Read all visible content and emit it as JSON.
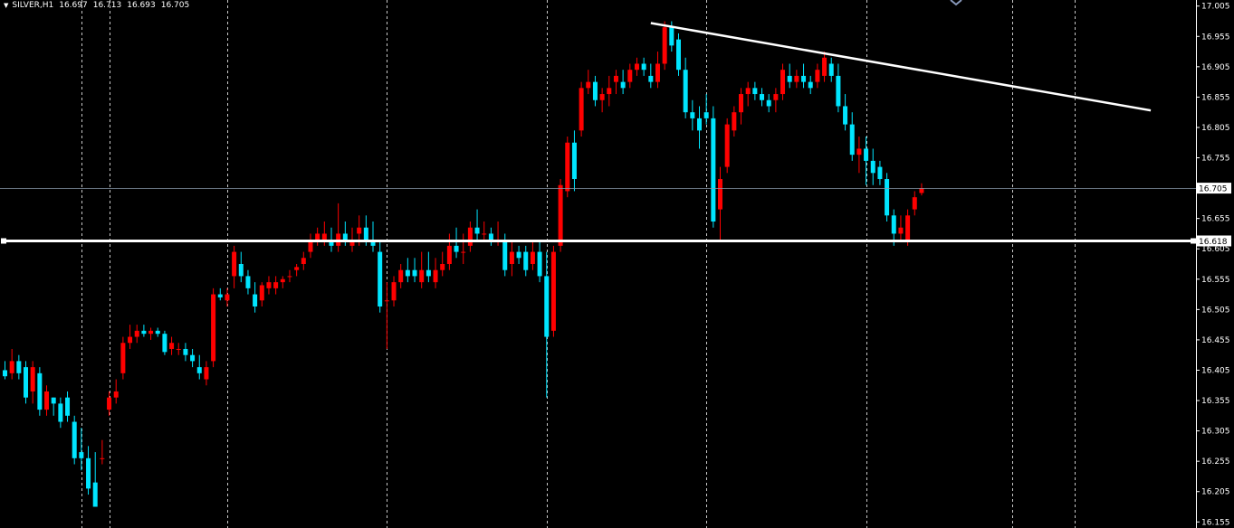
{
  "chart_data": {
    "type": "candlestick",
    "symbol": "SILVER,H1",
    "ohlc_readout": {
      "open": "16.697",
      "high": "16.713",
      "low": "16.693",
      "close": "16.705"
    },
    "y_range": [
      16.145,
      17.015
    ],
    "y_ticks": [
      "17.005",
      "16.955",
      "16.905",
      "16.855",
      "16.805",
      "16.755",
      "16.655",
      "16.605",
      "16.555",
      "16.505",
      "16.455",
      "16.405",
      "16.355",
      "16.305",
      "16.255",
      "16.205",
      "16.155"
    ],
    "current_price_label": "16.705",
    "horizontal_line_label": "16.618",
    "horizontal_line_price": 16.618,
    "trend_line": {
      "start_bar": 93,
      "start_price": 16.977,
      "end_bar": 165,
      "end_price": 16.833
    },
    "colors": {
      "bull": "#ff0000",
      "bear": "#00e5ff",
      "grid": "#c8c8c8",
      "lines": "#ffffff",
      "background": "#000000"
    },
    "session_separators_bar": [
      11,
      15,
      32,
      55,
      78,
      101,
      124,
      145,
      154
    ],
    "candles": [
      [
        16.405,
        16.42,
        16.39,
        16.395
      ],
      [
        16.4,
        16.44,
        16.39,
        16.42
      ],
      [
        16.42,
        16.43,
        16.39,
        16.4
      ],
      [
        16.41,
        16.42,
        16.35,
        16.36
      ],
      [
        16.37,
        16.42,
        16.35,
        16.41
      ],
      [
        16.4,
        16.41,
        16.33,
        16.34
      ],
      [
        16.34,
        16.38,
        16.33,
        16.37
      ],
      [
        16.36,
        16.36,
        16.33,
        16.35
      ],
      [
        16.35,
        16.36,
        16.31,
        16.32
      ],
      [
        16.36,
        16.37,
        16.32,
        16.33
      ],
      [
        16.32,
        16.33,
        16.25,
        16.26
      ],
      [
        16.27,
        16.31,
        16.24,
        16.26
      ],
      [
        16.26,
        16.28,
        16.2,
        16.21
      ],
      [
        16.22,
        16.27,
        16.18,
        16.18
      ],
      [
        16.26,
        16.29,
        16.25,
        16.26
      ],
      [
        16.34,
        16.37,
        16.33,
        16.36
      ],
      [
        16.36,
        16.39,
        16.35,
        16.37
      ],
      [
        16.4,
        16.46,
        16.39,
        16.45
      ],
      [
        16.45,
        16.48,
        16.44,
        16.46
      ],
      [
        16.46,
        16.48,
        16.45,
        16.47
      ],
      [
        16.47,
        16.48,
        16.46,
        16.465
      ],
      [
        16.465,
        16.475,
        16.455,
        16.47
      ],
      [
        16.47,
        16.475,
        16.46,
        16.465
      ],
      [
        16.465,
        16.47,
        16.43,
        16.435
      ],
      [
        16.44,
        16.46,
        16.43,
        16.45
      ],
      [
        16.44,
        16.45,
        16.43,
        16.44
      ],
      [
        16.44,
        16.45,
        16.42,
        16.43
      ],
      [
        16.43,
        16.44,
        16.41,
        16.42
      ],
      [
        16.41,
        16.43,
        16.39,
        16.4
      ],
      [
        16.39,
        16.42,
        16.38,
        16.41
      ],
      [
        16.42,
        16.54,
        16.41,
        16.53
      ],
      [
        16.53,
        16.54,
        16.52,
        16.525
      ],
      [
        16.52,
        16.54,
        16.51,
        16.53
      ],
      [
        16.56,
        16.61,
        16.54,
        16.6
      ],
      [
        16.58,
        16.6,
        16.55,
        16.56
      ],
      [
        16.56,
        16.57,
        16.53,
        16.54
      ],
      [
        16.53,
        16.55,
        16.5,
        16.51
      ],
      [
        16.52,
        16.55,
        16.51,
        16.545
      ],
      [
        16.54,
        16.56,
        16.53,
        16.55
      ],
      [
        16.54,
        16.56,
        16.53,
        16.55
      ],
      [
        16.55,
        16.56,
        16.54,
        16.555
      ],
      [
        16.56,
        16.57,
        16.55,
        16.56
      ],
      [
        16.57,
        16.58,
        16.56,
        16.575
      ],
      [
        16.58,
        16.6,
        16.57,
        16.59
      ],
      [
        16.6,
        16.63,
        16.59,
        16.62
      ],
      [
        16.62,
        16.64,
        16.61,
        16.63
      ],
      [
        16.62,
        16.65,
        16.61,
        16.63
      ],
      [
        16.62,
        16.64,
        16.6,
        16.61
      ],
      [
        16.61,
        16.68,
        16.6,
        16.63
      ],
      [
        16.63,
        16.65,
        16.61,
        16.62
      ],
      [
        16.61,
        16.64,
        16.6,
        16.62
      ],
      [
        16.63,
        16.66,
        16.61,
        16.64
      ],
      [
        16.64,
        16.66,
        16.61,
        16.62
      ],
      [
        16.62,
        16.65,
        16.6,
        16.61
      ],
      [
        16.6,
        16.62,
        16.5,
        16.51
      ],
      [
        16.52,
        16.55,
        16.44,
        16.52
      ],
      [
        16.52,
        16.56,
        16.51,
        16.55
      ],
      [
        16.55,
        16.58,
        16.54,
        16.57
      ],
      [
        16.57,
        16.59,
        16.55,
        16.56
      ],
      [
        16.57,
        16.59,
        16.55,
        16.56
      ],
      [
        16.55,
        16.6,
        16.54,
        16.57
      ],
      [
        16.57,
        16.6,
        16.55,
        16.56
      ],
      [
        16.55,
        16.59,
        16.54,
        16.57
      ],
      [
        16.57,
        16.6,
        16.56,
        16.58
      ],
      [
        16.58,
        16.63,
        16.57,
        16.61
      ],
      [
        16.61,
        16.64,
        16.59,
        16.6
      ],
      [
        16.6,
        16.63,
        16.58,
        16.6
      ],
      [
        16.61,
        16.65,
        16.6,
        16.64
      ],
      [
        16.64,
        16.67,
        16.62,
        16.63
      ],
      [
        16.63,
        16.65,
        16.62,
        16.63
      ],
      [
        16.63,
        16.64,
        16.61,
        16.62
      ],
      [
        16.62,
        16.65,
        16.61,
        16.62
      ],
      [
        16.62,
        16.63,
        16.56,
        16.57
      ],
      [
        16.58,
        16.62,
        16.56,
        16.6
      ],
      [
        16.6,
        16.61,
        16.58,
        16.59
      ],
      [
        16.6,
        16.61,
        16.56,
        16.57
      ],
      [
        16.58,
        16.62,
        16.57,
        16.6
      ],
      [
        16.6,
        16.62,
        16.55,
        16.56
      ],
      [
        16.56,
        16.6,
        16.36,
        16.46
      ],
      [
        16.47,
        16.61,
        16.46,
        16.6
      ],
      [
        16.61,
        16.72,
        16.6,
        16.71
      ],
      [
        16.7,
        16.79,
        16.69,
        16.78
      ],
      [
        16.78,
        16.8,
        16.7,
        16.72
      ],
      [
        16.8,
        16.88,
        16.79,
        16.87
      ],
      [
        16.87,
        16.9,
        16.86,
        16.88
      ],
      [
        16.88,
        16.89,
        16.84,
        16.85
      ],
      [
        16.85,
        16.87,
        16.83,
        16.86
      ],
      [
        16.86,
        16.89,
        16.84,
        16.87
      ],
      [
        16.88,
        16.9,
        16.86,
        16.89
      ],
      [
        16.88,
        16.9,
        16.86,
        16.87
      ],
      [
        16.88,
        16.91,
        16.87,
        16.9
      ],
      [
        16.9,
        16.92,
        16.89,
        16.91
      ],
      [
        16.91,
        16.92,
        16.89,
        16.9
      ],
      [
        16.89,
        16.91,
        16.87,
        16.88
      ],
      [
        16.88,
        16.93,
        16.87,
        16.91
      ],
      [
        16.91,
        16.98,
        16.9,
        16.97
      ],
      [
        16.97,
        16.98,
        16.93,
        16.94
      ],
      [
        16.95,
        16.96,
        16.89,
        16.9
      ],
      [
        16.9,
        16.92,
        16.82,
        16.83
      ],
      [
        16.83,
        16.85,
        16.8,
        16.82
      ],
      [
        16.82,
        16.84,
        16.77,
        16.8
      ],
      [
        16.83,
        16.86,
        16.81,
        16.82
      ],
      [
        16.82,
        16.84,
        16.64,
        16.65
      ],
      [
        16.67,
        16.74,
        16.62,
        16.72
      ],
      [
        16.74,
        16.82,
        16.73,
        16.81
      ],
      [
        16.8,
        16.84,
        16.79,
        16.83
      ],
      [
        16.83,
        16.87,
        16.81,
        16.86
      ],
      [
        16.86,
        16.88,
        16.84,
        16.87
      ],
      [
        16.87,
        16.88,
        16.85,
        16.86
      ],
      [
        16.86,
        16.87,
        16.84,
        16.85
      ],
      [
        16.85,
        16.86,
        16.83,
        16.84
      ],
      [
        16.85,
        16.87,
        16.83,
        16.86
      ],
      [
        16.86,
        16.91,
        16.85,
        16.9
      ],
      [
        16.89,
        16.91,
        16.87,
        16.88
      ],
      [
        16.88,
        16.9,
        16.87,
        16.89
      ],
      [
        16.89,
        16.91,
        16.87,
        16.88
      ],
      [
        16.88,
        16.89,
        16.86,
        16.87
      ],
      [
        16.88,
        16.91,
        16.87,
        16.9
      ],
      [
        16.89,
        16.93,
        16.88,
        16.92
      ],
      [
        16.91,
        16.92,
        16.88,
        16.89
      ],
      [
        16.89,
        16.91,
        16.83,
        16.84
      ],
      [
        16.84,
        16.86,
        16.8,
        16.81
      ],
      [
        16.81,
        16.83,
        16.75,
        16.76
      ],
      [
        16.76,
        16.79,
        16.73,
        16.77
      ],
      [
        16.77,
        16.79,
        16.71,
        16.75
      ],
      [
        16.75,
        16.77,
        16.71,
        16.73
      ],
      [
        16.74,
        16.75,
        16.71,
        16.72
      ],
      [
        16.72,
        16.73,
        16.65,
        16.66
      ],
      [
        16.66,
        16.67,
        16.61,
        16.63
      ],
      [
        16.63,
        16.66,
        16.62,
        16.64
      ],
      [
        16.62,
        16.67,
        16.61,
        16.66
      ],
      [
        16.67,
        16.7,
        16.66,
        16.69
      ],
      [
        16.697,
        16.713,
        16.693,
        16.705
      ]
    ]
  }
}
